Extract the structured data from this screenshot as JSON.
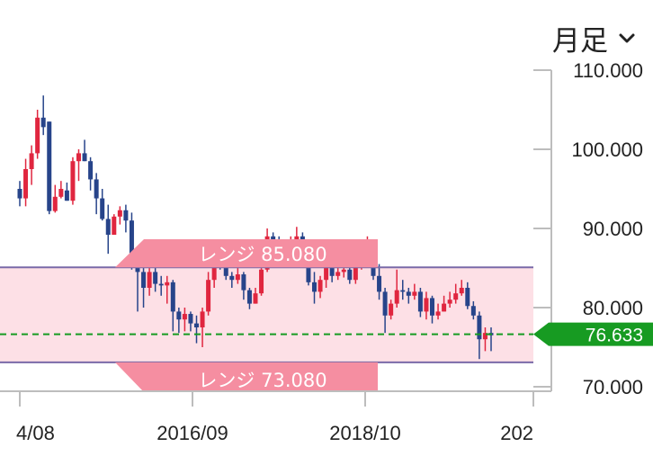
{
  "toolbar": {
    "period_label": "月足",
    "period_icon": "chevron-down-icon"
  },
  "colors": {
    "up": "#e0263f",
    "down": "#27448a",
    "range_fill": "#fde0e6",
    "range_line": "#7a6aa8",
    "label_bg": "#f58ea1",
    "current": "#179b22",
    "axis": "#bdbdbd",
    "text": "#222222"
  },
  "chart_data": {
    "type": "candlestick",
    "y_ticks": [
      "110.000",
      "100.000",
      "90.000",
      "80.000",
      "70.000"
    ],
    "x_ticks": [
      "4/08",
      "2016/09",
      "2018/10",
      "202"
    ],
    "ylim": [
      70,
      112
    ],
    "range_upper": {
      "label": "レンジ 85.080",
      "value": 85.08
    },
    "range_lower": {
      "label": "レンジ 73.080",
      "value": 73.08
    },
    "current_price": {
      "label": "76.633",
      "value": 76.633
    },
    "candles": [
      [
        95.0,
        93.8,
        96.0,
        92.8
      ],
      [
        93.8,
        97.5,
        98.8,
        92.8
      ],
      [
        97.5,
        99.5,
        100.5,
        95.5
      ],
      [
        99.5,
        104.0,
        105.0,
        98.8
      ],
      [
        104.0,
        102.8,
        106.8,
        101.8
      ],
      [
        103.5,
        92.2,
        103.5,
        91.8
      ],
      [
        92.2,
        94.0,
        95.5,
        92.0
      ],
      [
        94.0,
        95.0,
        96.0,
        93.8
      ],
      [
        94.8,
        93.5,
        95.8,
        93.5
      ],
      [
        93.5,
        98.5,
        99.0,
        93.0
      ],
      [
        98.5,
        99.5,
        100.0,
        96.0
      ],
      [
        99.5,
        98.5,
        101.2,
        98.5
      ],
      [
        98.5,
        96.2,
        99.0,
        94.8
      ],
      [
        96.2,
        93.8,
        97.0,
        91.8
      ],
      [
        93.8,
        91.2,
        95.0,
        91.0
      ],
      [
        91.2,
        89.2,
        93.0,
        86.8
      ],
      [
        89.2,
        91.5,
        91.8,
        89.2
      ],
      [
        91.5,
        92.3,
        92.8,
        90.5
      ],
      [
        92.3,
        91.0,
        93.0,
        89.5
      ],
      [
        91.0,
        85.5,
        92.0,
        84.8
      ],
      [
        85.5,
        84.5,
        86.5,
        79.5
      ],
      [
        84.5,
        82.5,
        85.5,
        80.0
      ],
      [
        82.5,
        84.5,
        85.0,
        81.5
      ],
      [
        84.5,
        83.0,
        85.5,
        82.0
      ],
      [
        83.0,
        82.8,
        84.0,
        81.5
      ],
      [
        82.8,
        83.2,
        84.0,
        80.5
      ],
      [
        83.2,
        79.5,
        83.5,
        77.0
      ],
      [
        79.5,
        78.5,
        80.0,
        76.8
      ],
      [
        78.5,
        79.2,
        80.0,
        77.0
      ],
      [
        79.2,
        78.0,
        79.5,
        77.0
      ],
      [
        78.0,
        77.5,
        79.0,
        75.5
      ],
      [
        77.5,
        79.5,
        80.0,
        75.0
      ],
      [
        79.5,
        83.5,
        84.5,
        79.0
      ],
      [
        83.5,
        86.0,
        86.5,
        82.5
      ],
      [
        86.0,
        85.5,
        87.0,
        84.8
      ],
      [
        85.5,
        84.0,
        86.0,
        83.5
      ],
      [
        84.0,
        83.5,
        84.5,
        82.5
      ],
      [
        83.5,
        84.2,
        85.0,
        83.0
      ],
      [
        84.2,
        82.2,
        84.5,
        81.0
      ],
      [
        82.2,
        80.5,
        82.5,
        79.8
      ],
      [
        80.5,
        81.8,
        82.5,
        80.5
      ],
      [
        81.8,
        84.8,
        85.5,
        81.5
      ],
      [
        84.8,
        89.0,
        90.0,
        84.5
      ],
      [
        89.0,
        88.5,
        89.5,
        87.5
      ],
      [
        88.5,
        88.0,
        89.0,
        86.5
      ],
      [
        88.0,
        86.8,
        88.5,
        85.5
      ],
      [
        86.8,
        88.2,
        89.0,
        86.5
      ],
      [
        88.2,
        89.0,
        90.2,
        87.8
      ],
      [
        89.0,
        88.0,
        89.5,
        87.2
      ],
      [
        88.0,
        83.2,
        88.5,
        82.8
      ],
      [
        83.2,
        82.0,
        84.5,
        80.5
      ],
      [
        82.0,
        83.5,
        84.0,
        81.2
      ],
      [
        83.5,
        85.0,
        85.5,
        82.5
      ],
      [
        85.0,
        84.0,
        85.5,
        83.2
      ],
      [
        84.0,
        84.5,
        85.8,
        83.5
      ],
      [
        84.5,
        84.8,
        85.5,
        83.8
      ],
      [
        84.8,
        83.5,
        85.5,
        83.0
      ],
      [
        83.5,
        85.2,
        86.5,
        83.0
      ],
      [
        85.2,
        87.5,
        88.5,
        84.8
      ],
      [
        87.5,
        88.0,
        89.0,
        86.8
      ],
      [
        88.0,
        84.0,
        88.5,
        83.5
      ],
      [
        84.0,
        82.0,
        85.5,
        81.0
      ],
      [
        82.0,
        79.0,
        82.5,
        76.8
      ],
      [
        79.0,
        80.5,
        81.0,
        78.5
      ],
      [
        80.5,
        82.2,
        84.8,
        80.0
      ],
      [
        82.2,
        82.0,
        83.5,
        81.0
      ],
      [
        82.0,
        81.5,
        82.5,
        80.5
      ],
      [
        81.5,
        82.0,
        83.0,
        81.0
      ],
      [
        82.0,
        79.5,
        82.5,
        78.8
      ],
      [
        79.5,
        81.2,
        82.0,
        78.5
      ],
      [
        81.2,
        79.0,
        81.5,
        78.0
      ],
      [
        79.0,
        79.5,
        80.5,
        78.5
      ],
      [
        79.5,
        80.5,
        81.5,
        79.5
      ],
      [
        80.5,
        81.0,
        82.0,
        80.0
      ],
      [
        81.0,
        81.8,
        83.0,
        80.5
      ],
      [
        81.8,
        82.5,
        83.5,
        81.5
      ],
      [
        82.5,
        80.2,
        83.2,
        79.8
      ],
      [
        80.2,
        79.0,
        80.8,
        78.5
      ],
      [
        79.0,
        76.0,
        79.5,
        73.5
      ],
      [
        76.0,
        76.8,
        77.5,
        74.5
      ],
      [
        76.8,
        76.5,
        77.5,
        74.5
      ]
    ]
  }
}
